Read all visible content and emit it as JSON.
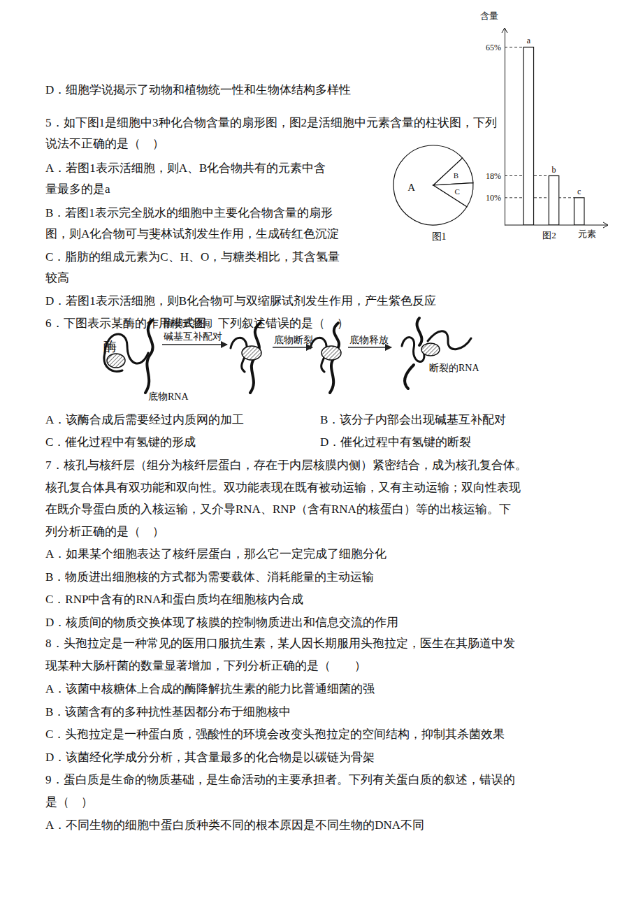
{
  "lines_a": [
    "D．细胞学说揭示了动物和植物统一性和生物体结构多样性",
    "5．如下图1是细胞中3种化合物含量的扇形图，图2是活细胞中元素含量的柱状图，下列",
    "说法不正确的是（    ）",
    "A．若图1表示活细胞，则A、B化合物共有的元素中含",
    "量最多的是a",
    "B．若图1表示完全脱水的细胞中主要化合物含量的扇形",
    "图，则A化合物可与斐林试剂发生作用，生成砖红色沉淀",
    "C．脂肪的组成元素为C、H、O，与糖类相比，其含氢量",
    "较高",
    "D．若图1表示活细胞，则B化合物可与双缩脲试剂发生作用，产生紫色反应",
    "6．下图表示某酶的作用模式图。下列叙述错误的是（    ）"
  ],
  "enzyme_diagram": {
    "enzyme": "酶",
    "step1": [
      "酶和底物间",
      "碱基互补配对"
    ],
    "step2": "底物断裂",
    "step3": "底物释放",
    "substrate": "底物RNA",
    "product": "断裂的RNA"
  },
  "q6_options": [
    "A．该酶合成后需要经过内质网的加工",
    "B．该分子内部会出现碱基互补配对",
    "C．催化过程中有氢键的形成",
    "D．催化过程中有氢键的断裂"
  ],
  "lines_b": [
    "7．核孔与核纤层（组分为核纤层蛋白，存在于内层核膜内侧）紧密结合，成为核孔复合体。",
    "核孔复合体具有双功能和双向性。双功能表现在既有被动运输，又有主动运输；双向性表现",
    "在既介导蛋白质的入核运输，又介导RNA、RNP（含有RNA的核蛋白）等的出核运输。下",
    "列分析正确的是（    ）",
    "A．如果某个细胞表达了核纤层蛋白，那么它一定完成了细胞分化",
    "B．物质进出细胞核的方式都为需要载体、消耗能量的主动运输",
    "C．RNP中含有的RNA和蛋白质均在细胞核内合成",
    "D．核质间的物质交换体现了核膜的控制物质进出和信息交流的作用",
    "8．头孢拉定是一种常见的医用口服抗生素，某人因长期服用头孢拉定，医生在其肠道中发",
    "现某种大肠杆菌的数量显著增加，下列分析正确的是（        ）",
    "A．该菌中核糖体上合成的酶降解抗生素的能力比普通细菌的强",
    "B．该菌含有的多种抗性基因都分布于细胞核中",
    "C．头孢拉定是一种蛋白质，强酸性的环境会改变头孢拉定的空间结构，抑制其杀菌效果",
    "D．该菌经化学成分分析，其含量最多的化合物是以碳链为骨架",
    "9．蛋白质是生命的物质基础，是生命活动的主要承担者。下列有关蛋白质的叙述，错误的",
    "是（    ）",
    "A．不同生物的细胞中蛋白质种类不同的根本原因是不同生物的DNA不同"
  ],
  "chart_data": [
    {
      "type": "pie",
      "title": "图1",
      "categories": [
        "A",
        "B",
        "C"
      ],
      "values": [
        79,
        11,
        10
      ]
    },
    {
      "type": "bar",
      "title": "图2",
      "y_label": "含量",
      "x_label": "元素",
      "categories": [
        "a",
        "b",
        "c"
      ],
      "values": [
        65,
        18,
        10
      ],
      "ylim": [
        0,
        72
      ],
      "yticks": [
        {
          "value": 10,
          "label": "10%"
        },
        {
          "value": 18,
          "label": "18%"
        },
        {
          "value": 65,
          "label": "65%"
        }
      ]
    }
  ]
}
